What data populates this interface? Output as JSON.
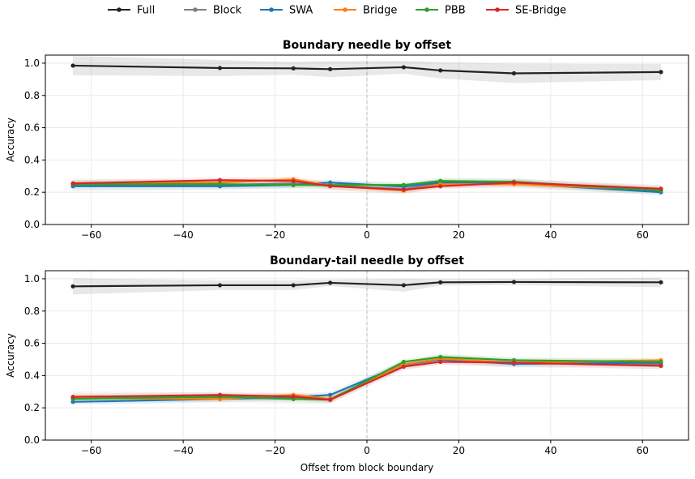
{
  "legend": [
    {
      "name": "Full",
      "color": "#222222"
    },
    {
      "name": "Block",
      "color": "#7f7f7f"
    },
    {
      "name": "SWA",
      "color": "#1f77b4"
    },
    {
      "name": "Bridge",
      "color": "#ff7f0e"
    },
    {
      "name": "PBB",
      "color": "#2ca02c"
    },
    {
      "name": "SE-Bridge",
      "color": "#d62728"
    }
  ],
  "chart_data": [
    {
      "type": "line",
      "title": "Boundary needle by offset",
      "xlabel": "",
      "ylabel": "Accuracy",
      "xlim": [
        -70,
        70
      ],
      "ylim": [
        0,
        1.05
      ],
      "xticks": [
        "−60",
        "−40",
        "−20",
        "0",
        "20",
        "40",
        "60"
      ],
      "xtick_values": [
        -60,
        -40,
        -20,
        0,
        20,
        40,
        60
      ],
      "yticks": [
        "0.0",
        "0.2",
        "0.4",
        "0.6",
        "0.8",
        "1.0"
      ],
      "ytick_values": [
        0,
        0.2,
        0.4,
        0.6,
        0.8,
        1.0
      ],
      "grid": true,
      "vline_x": 0,
      "x": [
        -64,
        -32,
        -16,
        -8,
        8,
        16,
        32,
        64
      ],
      "series": [
        {
          "name": "Full",
          "color": "#222222",
          "values": [
            0.985,
            0.97,
            0.968,
            0.963,
            0.975,
            0.955,
            0.937,
            0.945
          ],
          "band": [
            0.06,
            0.05,
            0.04,
            0.05,
            0.04,
            0.05,
            0.06,
            0.05
          ]
        },
        {
          "name": "Block",
          "color": "#7f7f7f",
          "values": [
            0.245,
            0.245,
            0.255,
            0.24,
            0.22,
            0.255,
            0.255,
            0.215
          ],
          "band": [
            0.04,
            0.03,
            0.03,
            0.03,
            0.03,
            0.03,
            0.03,
            0.03
          ]
        },
        {
          "name": "SWA",
          "color": "#1f77b4",
          "values": [
            0.237,
            0.237,
            0.245,
            0.26,
            0.235,
            0.26,
            0.255,
            0.2
          ],
          "band": [
            0.02,
            0.02,
            0.02,
            0.02,
            0.02,
            0.02,
            0.02,
            0.02
          ]
        },
        {
          "name": "Bridge",
          "color": "#ff7f0e",
          "values": [
            0.255,
            0.26,
            0.28,
            0.24,
            0.21,
            0.25,
            0.25,
            0.215
          ],
          "band": [
            0.02,
            0.02,
            0.02,
            0.02,
            0.02,
            0.02,
            0.02,
            0.02
          ]
        },
        {
          "name": "PBB",
          "color": "#2ca02c",
          "values": [
            0.25,
            0.25,
            0.245,
            0.245,
            0.245,
            0.27,
            0.265,
            0.21
          ],
          "band": [
            0.02,
            0.02,
            0.02,
            0.02,
            0.02,
            0.02,
            0.02,
            0.02
          ]
        },
        {
          "name": "SE-Bridge",
          "color": "#d62728",
          "values": [
            0.255,
            0.275,
            0.27,
            0.238,
            0.215,
            0.237,
            0.26,
            0.222
          ],
          "band": [
            0.02,
            0.02,
            0.02,
            0.02,
            0.02,
            0.02,
            0.02,
            0.02
          ]
        }
      ]
    },
    {
      "type": "line",
      "title": "Boundary-tail needle by offset",
      "xlabel": "Offset from block boundary",
      "ylabel": "Accuracy",
      "xlim": [
        -70,
        70
      ],
      "ylim": [
        0,
        1.05
      ],
      "xticks": [
        "−60",
        "−40",
        "−20",
        "0",
        "20",
        "40",
        "60"
      ],
      "xtick_values": [
        -60,
        -40,
        -20,
        0,
        20,
        40,
        60
      ],
      "yticks": [
        "0.0",
        "0.2",
        "0.4",
        "0.6",
        "0.8",
        "1.0"
      ],
      "ytick_values": [
        0,
        0.2,
        0.4,
        0.6,
        0.8,
        1.0
      ],
      "grid": true,
      "vline_x": 0,
      "x": [
        -64,
        -32,
        -16,
        -8,
        8,
        16,
        32,
        64
      ],
      "series": [
        {
          "name": "Full",
          "color": "#222222",
          "values": [
            0.953,
            0.96,
            0.96,
            0.975,
            0.96,
            0.978,
            0.98,
            0.978
          ],
          "band": [
            0.05,
            0.03,
            0.03,
            0.02,
            0.04,
            0.02,
            0.02,
            0.03
          ]
        },
        {
          "name": "Block",
          "color": "#7f7f7f",
          "values": [
            0.265,
            0.265,
            0.255,
            0.255,
            0.465,
            0.5,
            0.48,
            0.47
          ],
          "band": [
            0.04,
            0.03,
            0.03,
            0.03,
            0.03,
            0.03,
            0.03,
            0.03
          ]
        },
        {
          "name": "SWA",
          "color": "#1f77b4",
          "values": [
            0.237,
            0.255,
            0.265,
            0.28,
            0.47,
            0.5,
            0.472,
            0.48
          ],
          "band": [
            0.02,
            0.02,
            0.02,
            0.02,
            0.02,
            0.02,
            0.02,
            0.02
          ]
        },
        {
          "name": "Bridge",
          "color": "#ff7f0e",
          "values": [
            0.26,
            0.255,
            0.28,
            0.255,
            0.47,
            0.505,
            0.48,
            0.495
          ],
          "band": [
            0.02,
            0.02,
            0.02,
            0.02,
            0.02,
            0.02,
            0.02,
            0.02
          ]
        },
        {
          "name": "PBB",
          "color": "#2ca02c",
          "values": [
            0.255,
            0.27,
            0.255,
            0.25,
            0.485,
            0.515,
            0.495,
            0.485
          ],
          "band": [
            0.02,
            0.02,
            0.02,
            0.02,
            0.02,
            0.02,
            0.02,
            0.02
          ]
        },
        {
          "name": "SE-Bridge",
          "color": "#d62728",
          "values": [
            0.268,
            0.28,
            0.27,
            0.25,
            0.455,
            0.485,
            0.48,
            0.46
          ],
          "band": [
            0.02,
            0.02,
            0.02,
            0.02,
            0.02,
            0.02,
            0.02,
            0.02
          ]
        }
      ]
    }
  ]
}
